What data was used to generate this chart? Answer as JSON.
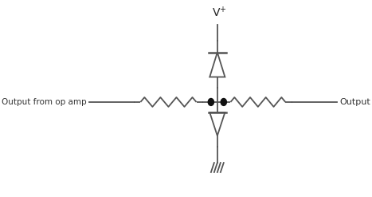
{
  "bg_color": "#ffffff",
  "line_color": "#555555",
  "dot_color": "#111111",
  "fig_width": 4.67,
  "fig_height": 2.47,
  "dpi": 100,
  "left_text": "Output from op amp",
  "right_text": "Output",
  "vplus_text": "V",
  "vplus_super": "+"
}
